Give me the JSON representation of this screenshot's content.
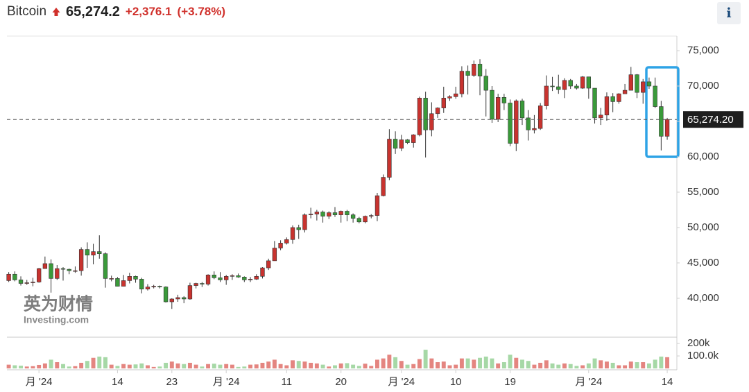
{
  "header": {
    "name": "Bitcoin",
    "price": "65,274.2",
    "change": "+2,376.1",
    "change_pct": "(+3.78%)",
    "info": "i"
  },
  "watermark": {
    "cn": "英为财情",
    "en": "Investing.com"
  },
  "chart_data": {
    "type": "candlestick",
    "up_color": "#c8332f",
    "down_color": "#3a9a3a",
    "xlim": [
      -0.3,
      110.6
    ],
    "xticks": [
      {
        "value": 5,
        "label": "月 '24"
      },
      {
        "value": 18,
        "label": "14"
      },
      {
        "value": 27,
        "label": "23"
      },
      {
        "value": 36,
        "label": "月 '24"
      },
      {
        "value": 46,
        "label": "11"
      },
      {
        "value": 55,
        "label": "20"
      },
      {
        "value": 65,
        "label": "月 '24"
      },
      {
        "value": 74,
        "label": "10"
      },
      {
        "value": 83,
        "label": "19"
      },
      {
        "value": 96,
        "label": "月 '24"
      },
      {
        "value": 109,
        "label": "14"
      }
    ],
    "ylim": [
      34600,
      77100
    ],
    "yticks": [
      {
        "value": 40000,
        "label": "40,000"
      },
      {
        "value": 45000,
        "label": "45,000"
      },
      {
        "value": 50000,
        "label": "50,000"
      },
      {
        "value": 55000,
        "label": "55,000"
      },
      {
        "value": 60000,
        "label": "60,000"
      },
      {
        "value": 65000,
        "label": "65,000"
      },
      {
        "value": 70000,
        "label": "70,000"
      },
      {
        "value": 75000,
        "label": "75,000"
      }
    ],
    "last_price": {
      "value": 65274.2,
      "label": "65,274.20"
    },
    "ohlc": [
      [
        42500,
        43700,
        42300,
        43400
      ],
      [
        43400,
        43800,
        42400,
        42600
      ],
      [
        42600,
        43100,
        41800,
        42100
      ],
      [
        42100,
        42600,
        41900,
        42200
      ],
      [
        42200,
        42900,
        41700,
        42300
      ],
      [
        42300,
        44300,
        42200,
        44200
      ],
      [
        44200,
        45900,
        44200,
        44900
      ],
      [
        44900,
        45500,
        40800,
        42800
      ],
      [
        42800,
        44700,
        42600,
        44200
      ],
      [
        44200,
        44400,
        42500,
        44100
      ],
      [
        44100,
        44200,
        43400,
        43900
      ],
      [
        43900,
        44500,
        43600,
        43900
      ],
      [
        43900,
        47200,
        43200,
        46900
      ],
      [
        46900,
        47900,
        44300,
        46100
      ],
      [
        46100,
        47700,
        44800,
        46600
      ],
      [
        46600,
        48900,
        45600,
        46300
      ],
      [
        46300,
        46500,
        41500,
        42800
      ],
      [
        42800,
        43200,
        42400,
        42800
      ],
      [
        42800,
        43000,
        41700,
        41700
      ],
      [
        41700,
        43300,
        41700,
        42500
      ],
      [
        42500,
        43600,
        42100,
        43100
      ],
      [
        43100,
        43200,
        42200,
        42700
      ],
      [
        42700,
        42900,
        40700,
        41300
      ],
      [
        41300,
        42000,
        41100,
        41600
      ],
      [
        41600,
        41900,
        41400,
        41700
      ],
      [
        41700,
        41800,
        41400,
        41600
      ],
      [
        41600,
        41700,
        39400,
        39500
      ],
      [
        39500,
        40000,
        38500,
        39900
      ],
      [
        39900,
        40500,
        39500,
        40100
      ],
      [
        40100,
        40300,
        39300,
        39900
      ],
      [
        39900,
        42200,
        39800,
        41800
      ],
      [
        41800,
        42200,
        41400,
        42100
      ],
      [
        42100,
        42300,
        41600,
        42000
      ],
      [
        42000,
        43400,
        41800,
        43300
      ],
      [
        43300,
        43800,
        42700,
        42900
      ],
      [
        42900,
        43700,
        42300,
        42600
      ],
      [
        42600,
        43300,
        41900,
        43100
      ],
      [
        43100,
        43400,
        42600,
        43200
      ],
      [
        43200,
        43500,
        42900,
        43000
      ],
      [
        43000,
        43100,
        42300,
        42600
      ],
      [
        42600,
        43000,
        42300,
        42700
      ],
      [
        42700,
        43400,
        42600,
        43100
      ],
      [
        43100,
        44400,
        42800,
        44300
      ],
      [
        44300,
        45600,
        44000,
        45300
      ],
      [
        45300,
        48100,
        45300,
        47100
      ],
      [
        47100,
        48200,
        46800,
        47800
      ],
      [
        47800,
        48600,
        47600,
        48300
      ],
      [
        48300,
        50300,
        47700,
        50000
      ],
      [
        50000,
        50400,
        48400,
        49700
      ],
      [
        49700,
        52000,
        49300,
        51800
      ],
      [
        51800,
        52800,
        51300,
        51900
      ],
      [
        51900,
        52500,
        51000,
        52200
      ],
      [
        52200,
        52400,
        50700,
        51600
      ],
      [
        51600,
        52300,
        51200,
        52100
      ],
      [
        52100,
        52900,
        51500,
        51800
      ],
      [
        51800,
        52400,
        50700,
        52300
      ],
      [
        52300,
        52500,
        50900,
        51800
      ],
      [
        51800,
        52000,
        50700,
        51300
      ],
      [
        51300,
        51500,
        50600,
        50800
      ],
      [
        50800,
        51700,
        50600,
        51600
      ],
      [
        51600,
        51900,
        51300,
        51700
      ],
      [
        51700,
        54900,
        50900,
        54500
      ],
      [
        54500,
        57500,
        54400,
        57100
      ],
      [
        57100,
        63900,
        56700,
        62500
      ],
      [
        62500,
        63600,
        60400,
        61200
      ],
      [
        61200,
        63100,
        60800,
        62400
      ],
      [
        62400,
        62500,
        61800,
        62000
      ],
      [
        62000,
        63200,
        61300,
        63100
      ],
      [
        63100,
        68500,
        62900,
        68300
      ],
      [
        68300,
        69200,
        59900,
        63800
      ],
      [
        63800,
        67700,
        62900,
        66100
      ],
      [
        66100,
        67000,
        65500,
        66900
      ],
      [
        66900,
        69900,
        66200,
        68300
      ],
      [
        68300,
        68700,
        67900,
        68500
      ],
      [
        68500,
        69900,
        68200,
        68900
      ],
      [
        68900,
        72800,
        68400,
        72100
      ],
      [
        72100,
        72900,
        68800,
        71500
      ],
      [
        71500,
        73600,
        71300,
        73100
      ],
      [
        73100,
        73800,
        68700,
        71400
      ],
      [
        71400,
        72400,
        65700,
        69400
      ],
      [
        69400,
        70000,
        64800,
        65300
      ],
      [
        65300,
        68900,
        64900,
        68400
      ],
      [
        68400,
        68900,
        66600,
        67600
      ],
      [
        67600,
        68100,
        61500,
        61900
      ],
      [
        61900,
        68100,
        60800,
        67900
      ],
      [
        67900,
        68200,
        64500,
        65500
      ],
      [
        65500,
        66600,
        62300,
        63800
      ],
      [
        63800,
        65900,
        63300,
        64000
      ],
      [
        64000,
        67600,
        63800,
        67200
      ],
      [
        67200,
        71500,
        66700,
        70000
      ],
      [
        70000,
        71300,
        69300,
        69900
      ],
      [
        69900,
        71600,
        68900,
        69500
      ],
      [
        69500,
        71100,
        68300,
        70800
      ],
      [
        70800,
        71000,
        69600,
        70000
      ],
      [
        70000,
        70300,
        69500,
        69700
      ],
      [
        69700,
        71400,
        69600,
        71300
      ],
      [
        71300,
        71300,
        68200,
        69700
      ],
      [
        69700,
        69700,
        64700,
        65500
      ],
      [
        65500,
        66900,
        64500,
        65900
      ],
      [
        65900,
        69100,
        65100,
        68500
      ],
      [
        68500,
        69000,
        66300,
        67800
      ],
      [
        67800,
        69000,
        67500,
        68900
      ],
      [
        68900,
        70300,
        68900,
        69400
      ],
      [
        69400,
        72700,
        69400,
        71600
      ],
      [
        71600,
        71700,
        68300,
        69100
      ],
      [
        69100,
        71000,
        67500,
        70600
      ],
      [
        70600,
        71200,
        69600,
        70000
      ],
      [
        70000,
        71200,
        66900,
        67100
      ],
      [
        67100,
        67900,
        60900,
        62900
      ],
      [
        62900,
        65500,
        62400,
        65274.2
      ]
    ],
    "volume": {
      "up_color": "#e48580",
      "down_color": "#a6d8a6",
      "ylim": [
        0,
        245000
      ],
      "yticks": [
        {
          "value": 100000,
          "label": "100.0k"
        },
        {
          "value": 200000,
          "label": "200k"
        }
      ],
      "values": [
        30000,
        25000,
        22000,
        15000,
        18000,
        28000,
        40000,
        70000,
        50000,
        35000,
        15000,
        18000,
        45000,
        60000,
        85000,
        95000,
        90000,
        30000,
        20000,
        35000,
        30000,
        32000,
        40000,
        25000,
        12000,
        15000,
        45000,
        55000,
        40000,
        35000,
        45000,
        30000,
        15000,
        35000,
        38000,
        30000,
        35000,
        30000,
        12000,
        15000,
        30000,
        32000,
        45000,
        55000,
        70000,
        35000,
        25000,
        65000,
        60000,
        55000,
        45000,
        40000,
        30000,
        15000,
        25000,
        40000,
        42000,
        30000,
        20000,
        38000,
        20000,
        70000,
        80000,
        110000,
        90000,
        60000,
        30000,
        35000,
        75000,
        150000,
        80000,
        50000,
        55000,
        25000,
        30000,
        80000,
        80000,
        70000,
        85000,
        95000,
        80000,
        40000,
        50000,
        110000,
        85000,
        70000,
        60000,
        30000,
        45000,
        65000,
        40000,
        30000,
        40000,
        35000,
        20000,
        25000,
        40000,
        80000,
        65000,
        55000,
        45000,
        25000,
        25000,
        55000,
        50000,
        50000,
        40000,
        70000,
        95000,
        90000
      ]
    }
  }
}
